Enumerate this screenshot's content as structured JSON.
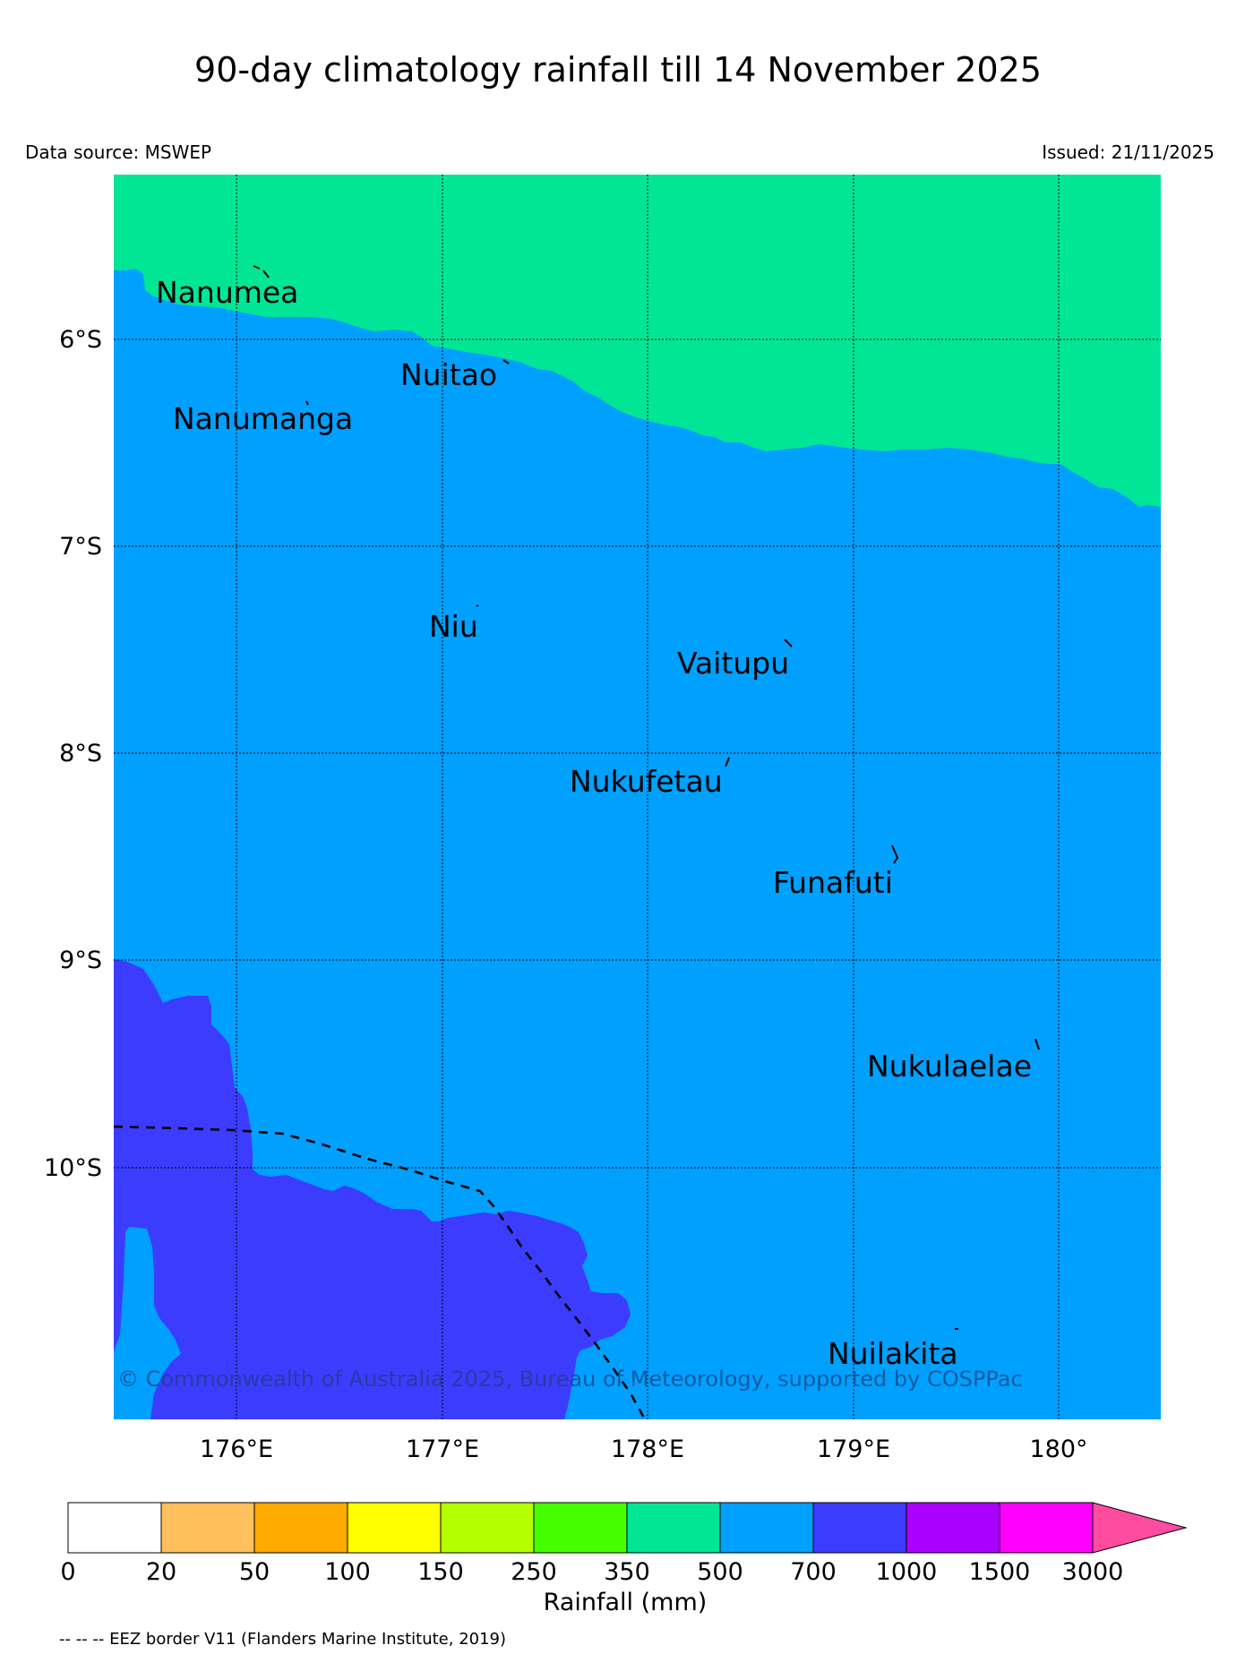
{
  "header": {
    "title": "90-day climatology rainfall till 14 November 2025",
    "source": "Data source: MSWEP",
    "issued": "Issued: 21/11/2025"
  },
  "axes": {
    "lat_ticks": [
      "6°S",
      "7°S",
      "8°S",
      "9°S",
      "10°S"
    ],
    "lon_ticks": [
      "176°E",
      "177°E",
      "178°E",
      "179°E",
      "180°"
    ]
  },
  "islands": [
    {
      "name": "Nanumea"
    },
    {
      "name": "Nuitao"
    },
    {
      "name": "Nanumanga"
    },
    {
      "name": "Niu"
    },
    {
      "name": "Vaitupu"
    },
    {
      "name": "Nukufetau"
    },
    {
      "name": "Funafuti"
    },
    {
      "name": "Nukulaelae"
    },
    {
      "name": "Nuilakita"
    }
  ],
  "copyright": "© Commonwealth of Australia 2025, Bureau of Meteorology, supported by COSPPac",
  "colorbar": {
    "label": "Rainfall (mm)",
    "ticks": [
      "0",
      "20",
      "50",
      "100",
      "150",
      "250",
      "350",
      "500",
      "700",
      "1000",
      "1500",
      "3000"
    ],
    "colors": [
      "#ffffff",
      "#ffbf5a",
      "#ffaa00",
      "#ffff00",
      "#b4ff00",
      "#46ff00",
      "#00e696",
      "#00a0ff",
      "#3c3cff",
      "#aa00ff",
      "#ff00ff",
      "#ff4ba0"
    ]
  },
  "region_colors": {
    "350-500": "#00e696",
    "500-700": "#00a0ff",
    "700-1000": "#3c3cff"
  },
  "footer": {
    "eez_note": "-- -- -- EEZ border V11 (Flanders Marine Institute, 2019)"
  }
}
